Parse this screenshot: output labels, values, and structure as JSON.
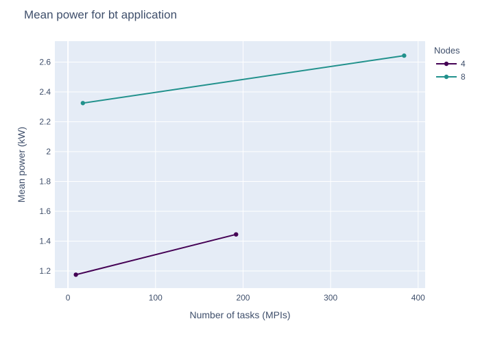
{
  "chart_data": {
    "type": "line",
    "title": "Mean power for bt application",
    "xlabel": "Number of tasks (MPIs)",
    "ylabel": "Mean power (kW)",
    "xlim": [
      -15,
      408
    ],
    "ylim": [
      1.085,
      2.74
    ],
    "x_ticks": [
      0,
      100,
      200,
      300,
      400
    ],
    "y_ticks": [
      1.2,
      1.4,
      1.6,
      1.8,
      2,
      2.2,
      2.4,
      2.6
    ],
    "x_tick_labels": [
      "0",
      "100",
      "200",
      "300",
      "400"
    ],
    "y_tick_labels": [
      "1.2",
      "1.4",
      "1.6",
      "1.8",
      "2",
      "2.2",
      "2.4",
      "2.6"
    ],
    "grid": true,
    "legend": {
      "title": "Nodes",
      "placement": "top-right, outside plot"
    },
    "series": [
      {
        "name": "4",
        "color": "#440154",
        "x": [
          9,
          192
        ],
        "y": [
          1.175,
          1.445
        ]
      },
      {
        "name": "8",
        "color": "#21918c",
        "x": [
          17,
          384
        ],
        "y": [
          2.325,
          2.643
        ]
      }
    ]
  }
}
